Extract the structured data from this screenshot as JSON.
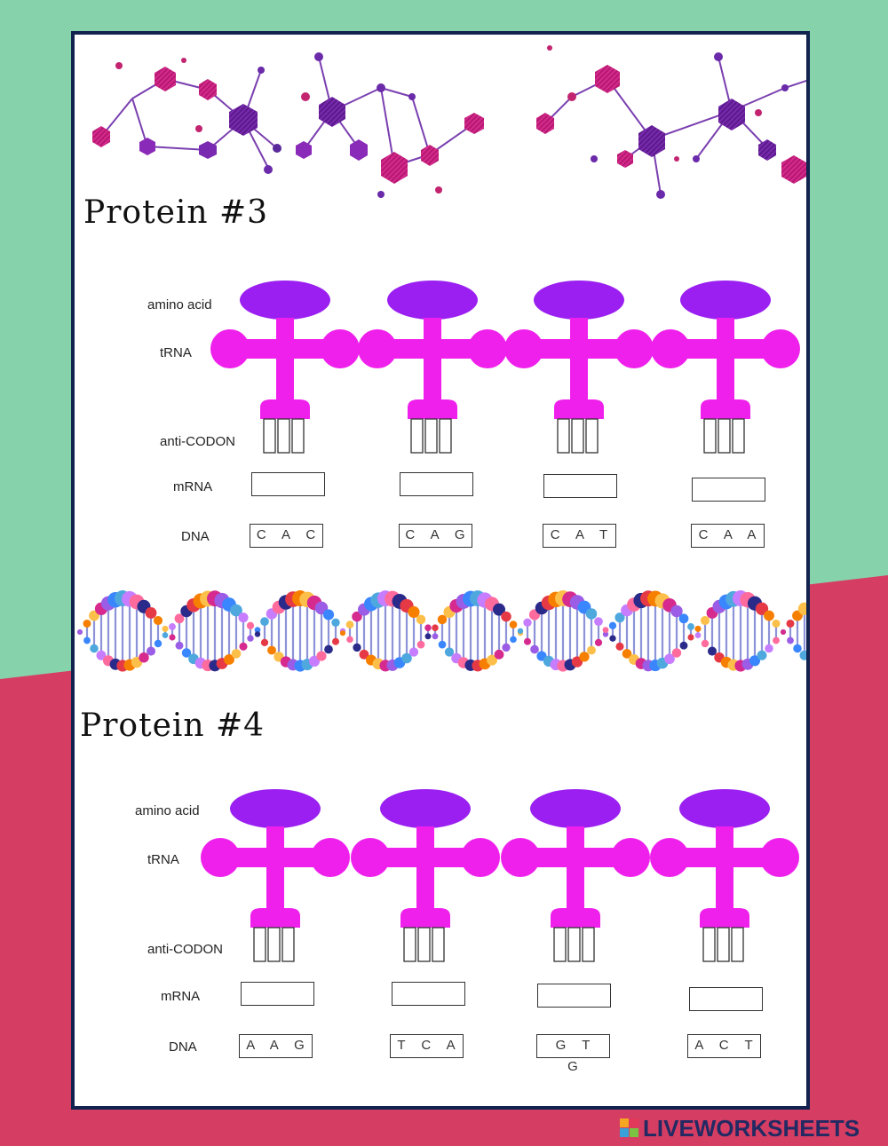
{
  "colors": {
    "green_bg": "#86d3ab",
    "red_bg": "#d53e62",
    "sheet_border": "#12234f",
    "trna_magenta": "#f020ec",
    "amino_purple": "#9a1ff0"
  },
  "icons": [
    "molecule-cluster-icon",
    "dna-helix-icon",
    "trna-icon",
    "liveworksheets-logo-icon"
  ],
  "proteins": [
    {
      "title": "Protein #3",
      "labels": {
        "amino": "amino acid",
        "trna": "tRNA",
        "anticodon": "anti-CODON",
        "mrna": "mRNA",
        "dna": "DNA"
      },
      "dna": [
        "C A C",
        "C A G",
        "C A T",
        "C A A"
      ],
      "mrna": [
        "",
        "",
        "",
        ""
      ]
    },
    {
      "title": "Protein #4",
      "labels": {
        "amino": "amino acid",
        "trna": "tRNA",
        "anticodon": "anti-CODON",
        "mrna": "mRNA",
        "dna": "DNA"
      },
      "dna": [
        "A A G",
        "T C A",
        "G T G",
        "A C T"
      ],
      "mrna": [
        "",
        "",
        "",
        ""
      ]
    }
  ],
  "brand": {
    "logo_text": "LIVEWORKSHEETS"
  }
}
